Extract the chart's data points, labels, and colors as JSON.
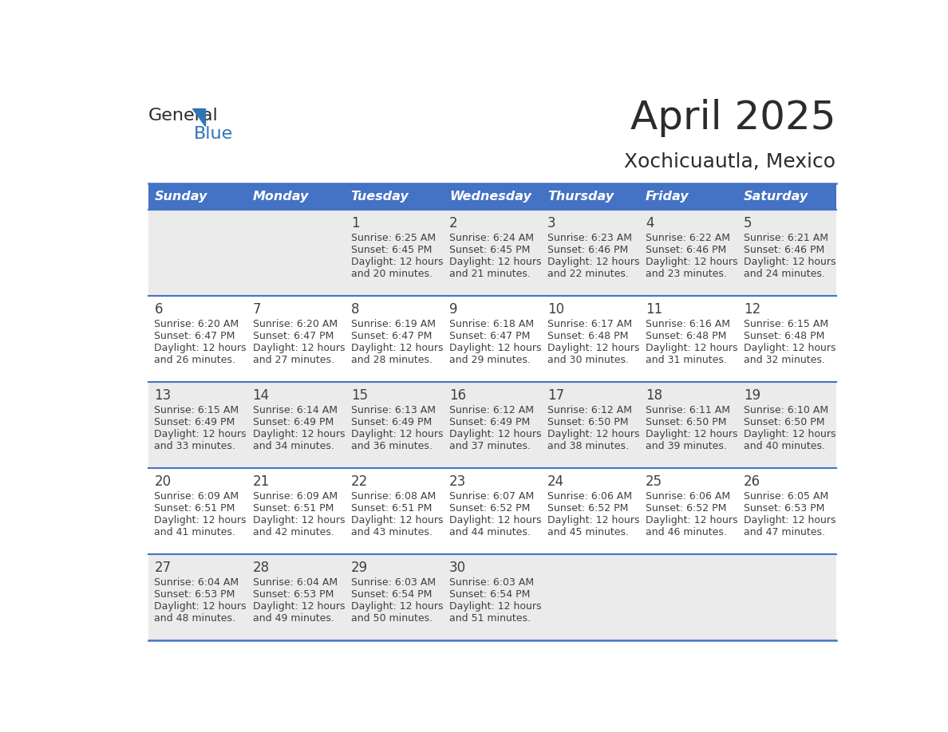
{
  "title": "April 2025",
  "subtitle": "Xochicuautla, Mexico",
  "header_bg_color": "#4472C4",
  "header_text_color": "#FFFFFF",
  "day_headers": [
    "Sunday",
    "Monday",
    "Tuesday",
    "Wednesday",
    "Thursday",
    "Friday",
    "Saturday"
  ],
  "background_color": "#FFFFFF",
  "cell_bg_odd": "#EBEBEB",
  "cell_bg_even": "#FFFFFF",
  "row_line_color": "#4472C4",
  "text_color": "#404040",
  "days": [
    {
      "day": null,
      "sunrise": null,
      "sunset": null,
      "daylight": null
    },
    {
      "day": null,
      "sunrise": null,
      "sunset": null,
      "daylight": null
    },
    {
      "day": 1,
      "sunrise": "6:25 AM",
      "sunset": "6:45 PM",
      "daylight_line1": "Daylight: 12 hours",
      "daylight_line2": "and 20 minutes."
    },
    {
      "day": 2,
      "sunrise": "6:24 AM",
      "sunset": "6:45 PM",
      "daylight_line1": "Daylight: 12 hours",
      "daylight_line2": "and 21 minutes."
    },
    {
      "day": 3,
      "sunrise": "6:23 AM",
      "sunset": "6:46 PM",
      "daylight_line1": "Daylight: 12 hours",
      "daylight_line2": "and 22 minutes."
    },
    {
      "day": 4,
      "sunrise": "6:22 AM",
      "sunset": "6:46 PM",
      "daylight_line1": "Daylight: 12 hours",
      "daylight_line2": "and 23 minutes."
    },
    {
      "day": 5,
      "sunrise": "6:21 AM",
      "sunset": "6:46 PM",
      "daylight_line1": "Daylight: 12 hours",
      "daylight_line2": "and 24 minutes."
    },
    {
      "day": 6,
      "sunrise": "6:20 AM",
      "sunset": "6:47 PM",
      "daylight_line1": "Daylight: 12 hours",
      "daylight_line2": "and 26 minutes."
    },
    {
      "day": 7,
      "sunrise": "6:20 AM",
      "sunset": "6:47 PM",
      "daylight_line1": "Daylight: 12 hours",
      "daylight_line2": "and 27 minutes."
    },
    {
      "day": 8,
      "sunrise": "6:19 AM",
      "sunset": "6:47 PM",
      "daylight_line1": "Daylight: 12 hours",
      "daylight_line2": "and 28 minutes."
    },
    {
      "day": 9,
      "sunrise": "6:18 AM",
      "sunset": "6:47 PM",
      "daylight_line1": "Daylight: 12 hours",
      "daylight_line2": "and 29 minutes."
    },
    {
      "day": 10,
      "sunrise": "6:17 AM",
      "sunset": "6:48 PM",
      "daylight_line1": "Daylight: 12 hours",
      "daylight_line2": "and 30 minutes."
    },
    {
      "day": 11,
      "sunrise": "6:16 AM",
      "sunset": "6:48 PM",
      "daylight_line1": "Daylight: 12 hours",
      "daylight_line2": "and 31 minutes."
    },
    {
      "day": 12,
      "sunrise": "6:15 AM",
      "sunset": "6:48 PM",
      "daylight_line1": "Daylight: 12 hours",
      "daylight_line2": "and 32 minutes."
    },
    {
      "day": 13,
      "sunrise": "6:15 AM",
      "sunset": "6:49 PM",
      "daylight_line1": "Daylight: 12 hours",
      "daylight_line2": "and 33 minutes."
    },
    {
      "day": 14,
      "sunrise": "6:14 AM",
      "sunset": "6:49 PM",
      "daylight_line1": "Daylight: 12 hours",
      "daylight_line2": "and 34 minutes."
    },
    {
      "day": 15,
      "sunrise": "6:13 AM",
      "sunset": "6:49 PM",
      "daylight_line1": "Daylight: 12 hours",
      "daylight_line2": "and 36 minutes."
    },
    {
      "day": 16,
      "sunrise": "6:12 AM",
      "sunset": "6:49 PM",
      "daylight_line1": "Daylight: 12 hours",
      "daylight_line2": "and 37 minutes."
    },
    {
      "day": 17,
      "sunrise": "6:12 AM",
      "sunset": "6:50 PM",
      "daylight_line1": "Daylight: 12 hours",
      "daylight_line2": "and 38 minutes."
    },
    {
      "day": 18,
      "sunrise": "6:11 AM",
      "sunset": "6:50 PM",
      "daylight_line1": "Daylight: 12 hours",
      "daylight_line2": "and 39 minutes."
    },
    {
      "day": 19,
      "sunrise": "6:10 AM",
      "sunset": "6:50 PM",
      "daylight_line1": "Daylight: 12 hours",
      "daylight_line2": "and 40 minutes."
    },
    {
      "day": 20,
      "sunrise": "6:09 AM",
      "sunset": "6:51 PM",
      "daylight_line1": "Daylight: 12 hours",
      "daylight_line2": "and 41 minutes."
    },
    {
      "day": 21,
      "sunrise": "6:09 AM",
      "sunset": "6:51 PM",
      "daylight_line1": "Daylight: 12 hours",
      "daylight_line2": "and 42 minutes."
    },
    {
      "day": 22,
      "sunrise": "6:08 AM",
      "sunset": "6:51 PM",
      "daylight_line1": "Daylight: 12 hours",
      "daylight_line2": "and 43 minutes."
    },
    {
      "day": 23,
      "sunrise": "6:07 AM",
      "sunset": "6:52 PM",
      "daylight_line1": "Daylight: 12 hours",
      "daylight_line2": "and 44 minutes."
    },
    {
      "day": 24,
      "sunrise": "6:06 AM",
      "sunset": "6:52 PM",
      "daylight_line1": "Daylight: 12 hours",
      "daylight_line2": "and 45 minutes."
    },
    {
      "day": 25,
      "sunrise": "6:06 AM",
      "sunset": "6:52 PM",
      "daylight_line1": "Daylight: 12 hours",
      "daylight_line2": "and 46 minutes."
    },
    {
      "day": 26,
      "sunrise": "6:05 AM",
      "sunset": "6:53 PM",
      "daylight_line1": "Daylight: 12 hours",
      "daylight_line2": "and 47 minutes."
    },
    {
      "day": 27,
      "sunrise": "6:04 AM",
      "sunset": "6:53 PM",
      "daylight_line1": "Daylight: 12 hours",
      "daylight_line2": "and 48 minutes."
    },
    {
      "day": 28,
      "sunrise": "6:04 AM",
      "sunset": "6:53 PM",
      "daylight_line1": "Daylight: 12 hours",
      "daylight_line2": "and 49 minutes."
    },
    {
      "day": 29,
      "sunrise": "6:03 AM",
      "sunset": "6:54 PM",
      "daylight_line1": "Daylight: 12 hours",
      "daylight_line2": "and 50 minutes."
    },
    {
      "day": 30,
      "sunrise": "6:03 AM",
      "sunset": "6:54 PM",
      "daylight_line1": "Daylight: 12 hours",
      "daylight_line2": "and 51 minutes."
    },
    {
      "day": null,
      "sunrise": null,
      "sunset": null,
      "daylight_line1": null,
      "daylight_line2": null
    },
    {
      "day": null,
      "sunrise": null,
      "sunset": null,
      "daylight_line1": null,
      "daylight_line2": null
    },
    {
      "day": null,
      "sunrise": null,
      "sunset": null,
      "daylight_line1": null,
      "daylight_line2": null
    }
  ],
  "logo_color_general": "#2B2B2B",
  "logo_color_blue": "#2E75B6",
  "logo_triangle_color": "#2E75B6",
  "title_fontsize": 36,
  "subtitle_fontsize": 18,
  "header_fontsize": 11.5,
  "daynum_fontsize": 12,
  "info_fontsize": 9.0
}
